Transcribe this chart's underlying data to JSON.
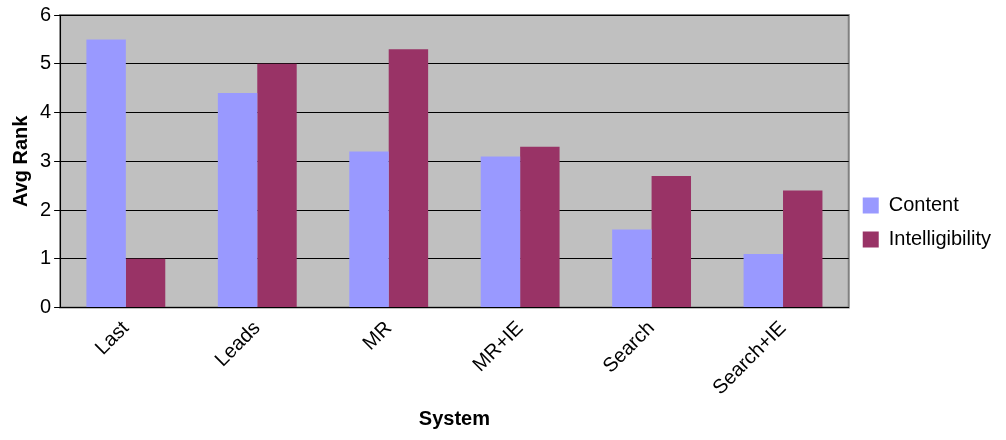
{
  "chart_data": {
    "type": "bar",
    "xlabel": "System",
    "ylabel": "Avg Rank",
    "categories": [
      "Last",
      "Leads",
      "MR",
      "MR+IE",
      "Search",
      "Search+IE"
    ],
    "series": [
      {
        "name": "Content",
        "color": "#9999ff",
        "values": [
          5.5,
          4.4,
          3.2,
          3.1,
          1.6,
          1.1
        ]
      },
      {
        "name": "Intelligibility",
        "color": "#993366",
        "values": [
          1.0,
          5.0,
          5.3,
          3.3,
          2.7,
          2.4
        ]
      }
    ],
    "ylim": [
      0,
      6
    ],
    "yticks": [
      0,
      1,
      2,
      3,
      4,
      5,
      6
    ],
    "grid": "y",
    "legend": "right"
  }
}
